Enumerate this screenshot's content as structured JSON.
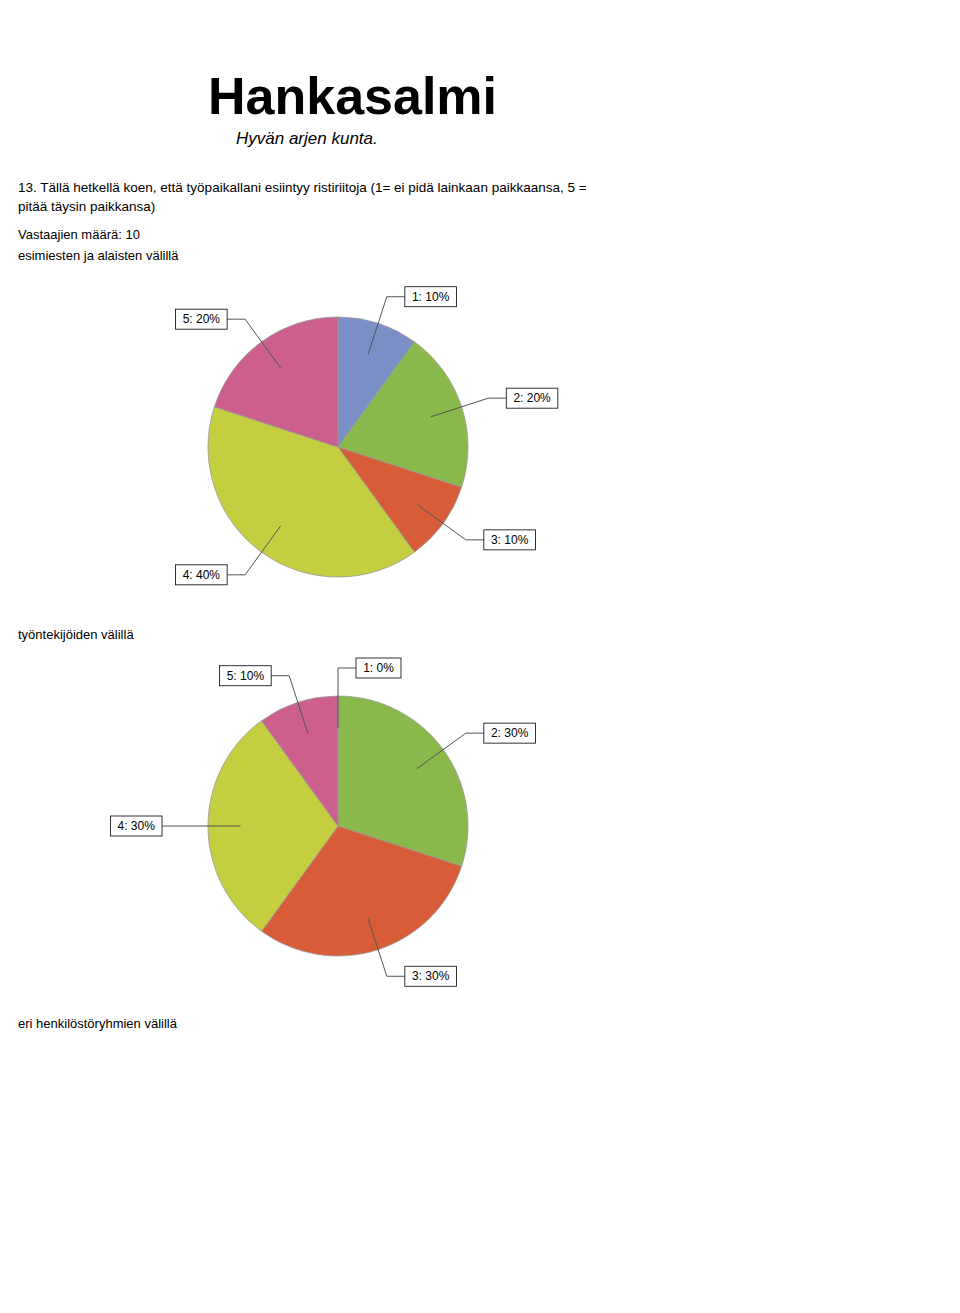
{
  "title": [
    "13. Tällä hetkellä koen, että työpaikallani esiintyy ristiriitoja (1= ei pidä lainkaan paikkaansa, 5 =",
    "pitää täysin paikkansa)"
  ],
  "subtitle": "Vastaajien määrä: 10",
  "annotations": [
    "Hankasalmi",
    "Hyvän arjen kunta.",
    "eri henkilöstöryhmien välillä"
  ],
  "chart_data": [
    {
      "type": "pie",
      "subtitle": "esimiesten ja alaisten välillä",
      "values": [
        10,
        20,
        10,
        40,
        20
      ],
      "value_labels": [
        "1: 10%",
        "2: 20%",
        "3: 10%",
        "4: 40%",
        "5: 20%"
      ],
      "colors": [
        "#7b8fc7",
        "#8ab84a",
        "#d95c38",
        "#c5ce3e",
        "#cc5f8e"
      ],
      "data_labels": true
    },
    {
      "type": "pie",
      "subtitle": "työntekijöiden välillä",
      "values": [
        0,
        30,
        30,
        30,
        10
      ],
      "value_labels": [
        "1: 0%",
        "2: 30%",
        "3: 30%",
        "4: 30%",
        "5: 10%"
      ],
      "colors": [
        "#7b8fc7",
        "#8ab84a",
        "#d95c38",
        "#c5ce3e",
        "#cc5f8e"
      ],
      "data_labels": true
    }
  ]
}
